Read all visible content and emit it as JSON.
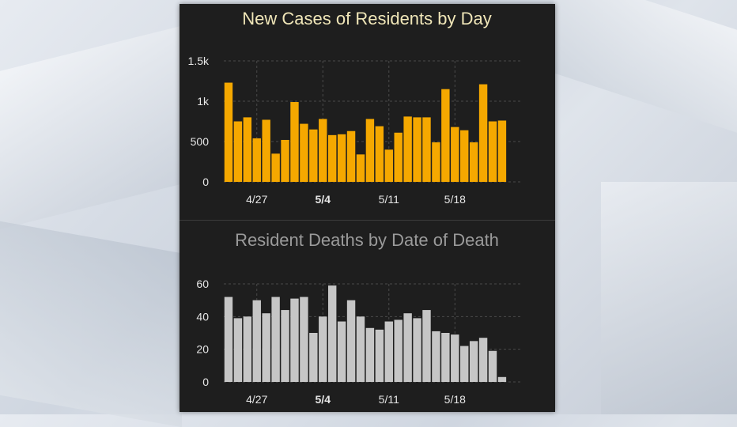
{
  "colors": {
    "cases_bar": "#f5a800",
    "deaths_bar": "#c6c6c6",
    "panel_bg": "#1e1e1e",
    "grid": "#4a4a4a",
    "tick_text": "#e6e6e6",
    "title_cases": "#f0e6b8",
    "title_deaths": "#9a9a9a"
  },
  "chart_data": [
    {
      "type": "bar",
      "title": "New Cases of Residents by Day",
      "xlabel": "",
      "ylabel": "",
      "ylim": [
        0,
        1500
      ],
      "yticks": [
        0,
        500,
        1000,
        1500
      ],
      "ytick_labels": [
        "0",
        "500",
        "1k",
        "1.5k"
      ],
      "xtick_labels": [
        "4/27",
        "5/4",
        "5/11",
        "5/18"
      ],
      "xtick_bold": [
        false,
        true,
        false,
        false
      ],
      "grid": true,
      "values": [
        1230,
        750,
        800,
        540,
        770,
        350,
        520,
        990,
        720,
        650,
        780,
        580,
        590,
        630,
        340,
        780,
        690,
        400,
        610,
        810,
        800,
        800,
        490,
        1150,
        680,
        640,
        490,
        1210,
        750,
        760
      ]
    },
    {
      "type": "bar",
      "title": "Resident Deaths by Date of Death",
      "xlabel": "",
      "ylabel": "",
      "ylim": [
        0,
        60
      ],
      "yticks": [
        0,
        20,
        40,
        60
      ],
      "ytick_labels": [
        "0",
        "20",
        "40",
        "60"
      ],
      "xtick_labels": [
        "4/27",
        "5/4",
        "5/11",
        "5/18"
      ],
      "xtick_bold": [
        false,
        true,
        false,
        false
      ],
      "grid": true,
      "values": [
        52,
        39,
        40,
        50,
        42,
        52,
        44,
        51,
        52,
        30,
        40,
        59,
        37,
        50,
        40,
        33,
        32,
        37,
        38,
        42,
        39,
        44,
        31,
        30,
        29,
        22,
        25,
        27,
        19,
        3
      ]
    }
  ]
}
